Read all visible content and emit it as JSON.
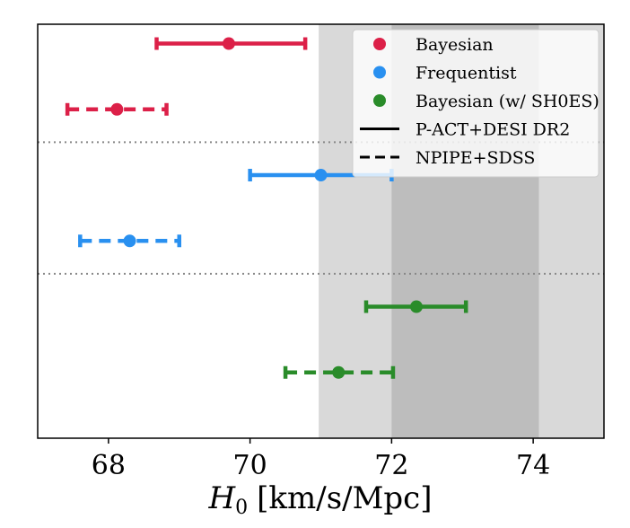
{
  "chart_data": {
    "type": "errorbar",
    "title": "",
    "xlabel": "H_0 [km/s/Mpc]",
    "xlabel_symbol": "H",
    "xlabel_subscript": "0",
    "xlabel_units": "[km/s/Mpc]",
    "ylabel": "",
    "xlim": [
      67.0,
      75.0
    ],
    "xticks": [
      "68",
      "70",
      "72",
      "74"
    ],
    "grid": false,
    "shaded_bands": [
      {
        "range": [
          70.97,
          75.0
        ],
        "shade": "light"
      },
      {
        "range": [
          72.0,
          74.08
        ],
        "shade": "dark"
      }
    ],
    "group_separators": true,
    "series": [
      {
        "name": "Bayesian",
        "color": "#dc2048",
        "group": 0,
        "dataset": "P-ACT+DESI DR2",
        "x": 69.7,
        "low": 68.68,
        "high": 70.78
      },
      {
        "name": "Bayesian",
        "color": "#dc2048",
        "group": 0,
        "dataset": "NPIPE+SDSS",
        "x": 68.12,
        "low": 67.42,
        "high": 68.82
      },
      {
        "name": "Frequentist",
        "color": "#2990f0",
        "group": 1,
        "dataset": "P-ACT+DESI DR2",
        "x": 71.0,
        "low": 70.0,
        "high": 72.0
      },
      {
        "name": "Frequentist",
        "color": "#2990f0",
        "group": 1,
        "dataset": "NPIPE+SDSS",
        "x": 68.3,
        "low": 67.6,
        "high": 69.0
      },
      {
        "name": "Bayesian (w/ SH0ES)",
        "color": "#2a8c2a",
        "group": 2,
        "dataset": "P-ACT+DESI DR2",
        "x": 72.35,
        "low": 71.64,
        "high": 73.05
      },
      {
        "name": "Bayesian (w/ SH0ES)",
        "color": "#2a8c2a",
        "group": 2,
        "dataset": "NPIPE+SDSS",
        "x": 71.25,
        "low": 70.5,
        "high": 72.02
      }
    ],
    "legend": {
      "placement": "top-right",
      "entries": [
        {
          "label": "Bayesian",
          "marker": "dot",
          "color": "#dc2048"
        },
        {
          "label": "Frequentist",
          "marker": "dot",
          "color": "#2990f0"
        },
        {
          "label": "Bayesian (w/ SH0ES)",
          "marker": "dot",
          "color": "#2a8c2a"
        },
        {
          "label": "P-ACT+DESI DR2",
          "marker": "solid-line",
          "color": "#000000"
        },
        {
          "label": "NPIPE+SDSS",
          "marker": "dashed-line",
          "color": "#000000"
        }
      ]
    },
    "colors": {
      "band_light": "#d9d9d9",
      "band_dark": "#bdbdbd",
      "separator": "#888888"
    }
  }
}
